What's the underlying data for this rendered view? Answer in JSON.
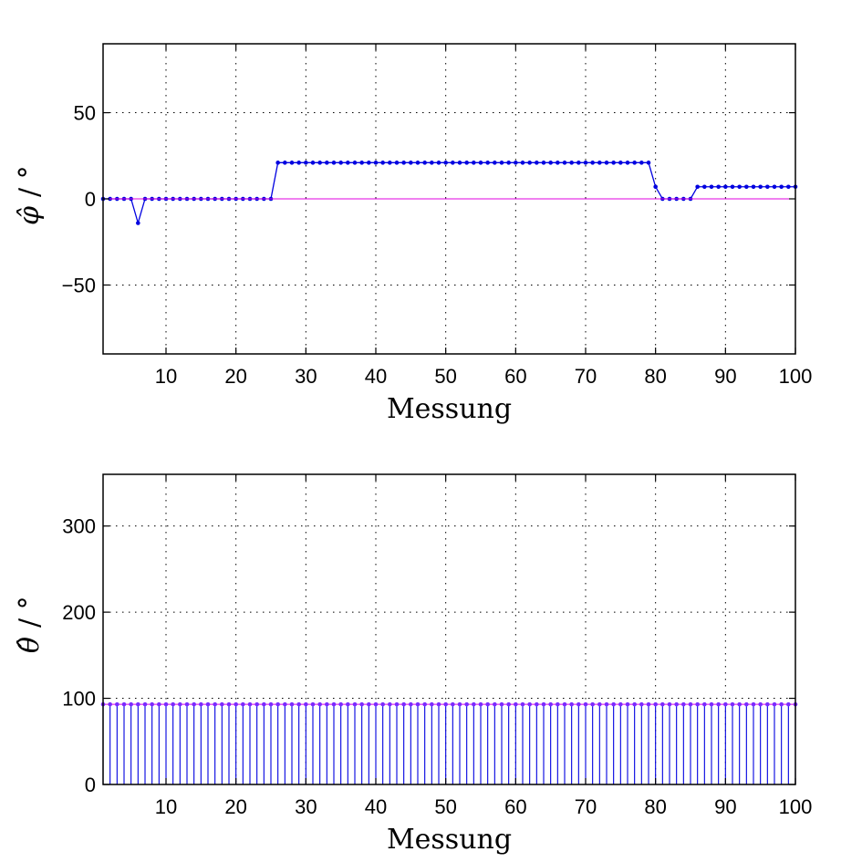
{
  "chart_data": [
    {
      "type": "line",
      "xlabel": "Messung",
      "ylabel_symbol": "φ̂",
      "ylabel_unit": "/ °",
      "xlim": [
        1,
        100
      ],
      "ylim": [
        -90,
        90
      ],
      "xticks": [
        10,
        20,
        30,
        40,
        50,
        60,
        70,
        80,
        90,
        100
      ],
      "xtick_labels": [
        "10",
        "20",
        "30",
        "40",
        "50",
        "60",
        "70",
        "80",
        "90",
        "100"
      ],
      "yticks": [
        -50,
        0,
        50
      ],
      "ytick_labels": [
        "−50",
        "0",
        "50"
      ],
      "grid": true,
      "series": [
        {
          "style": "line-dots",
          "color": "#0000e0",
          "x_start": 1,
          "x_step": 1,
          "values": [
            0,
            0,
            0,
            0,
            0,
            -14,
            0,
            0,
            0,
            0,
            0,
            0,
            0,
            0,
            0,
            0,
            0,
            0,
            0,
            0,
            0,
            0,
            0,
            0,
            0,
            21,
            21,
            21,
            21,
            21,
            21,
            21,
            21,
            21,
            21,
            21,
            21,
            21,
            21,
            21,
            21,
            21,
            21,
            21,
            21,
            21,
            21,
            21,
            21,
            21,
            21,
            21,
            21,
            21,
            21,
            21,
            21,
            21,
            21,
            21,
            21,
            21,
            21,
            21,
            21,
            21,
            21,
            21,
            21,
            21,
            21,
            21,
            21,
            21,
            21,
            21,
            21,
            21,
            21,
            7,
            0,
            0,
            0,
            0,
            0,
            7,
            7,
            7,
            7,
            7,
            7,
            7,
            7,
            7,
            7,
            7,
            7,
            7,
            7,
            7
          ]
        },
        {
          "style": "reference-line",
          "color": "#e000e0",
          "value": 0
        }
      ]
    },
    {
      "type": "stem",
      "xlabel": "Messung",
      "ylabel_symbol": "θ̂",
      "ylabel_unit": "/ °",
      "xlim": [
        1,
        100
      ],
      "ylim": [
        0,
        360
      ],
      "xticks": [
        10,
        20,
        30,
        40,
        50,
        60,
        70,
        80,
        90,
        100
      ],
      "xtick_labels": [
        "10",
        "20",
        "30",
        "40",
        "50",
        "60",
        "70",
        "80",
        "90",
        "100"
      ],
      "yticks": [
        0,
        100,
        200,
        300
      ],
      "ytick_labels": [
        "0",
        "100",
        "200",
        "300"
      ],
      "grid": true,
      "series": [
        {
          "style": "stem",
          "color": "#0000e0",
          "x_start": 1,
          "x_count": 100,
          "value": 93
        },
        {
          "style": "reference-line",
          "color": "#e000e0",
          "value": 93
        }
      ]
    }
  ]
}
